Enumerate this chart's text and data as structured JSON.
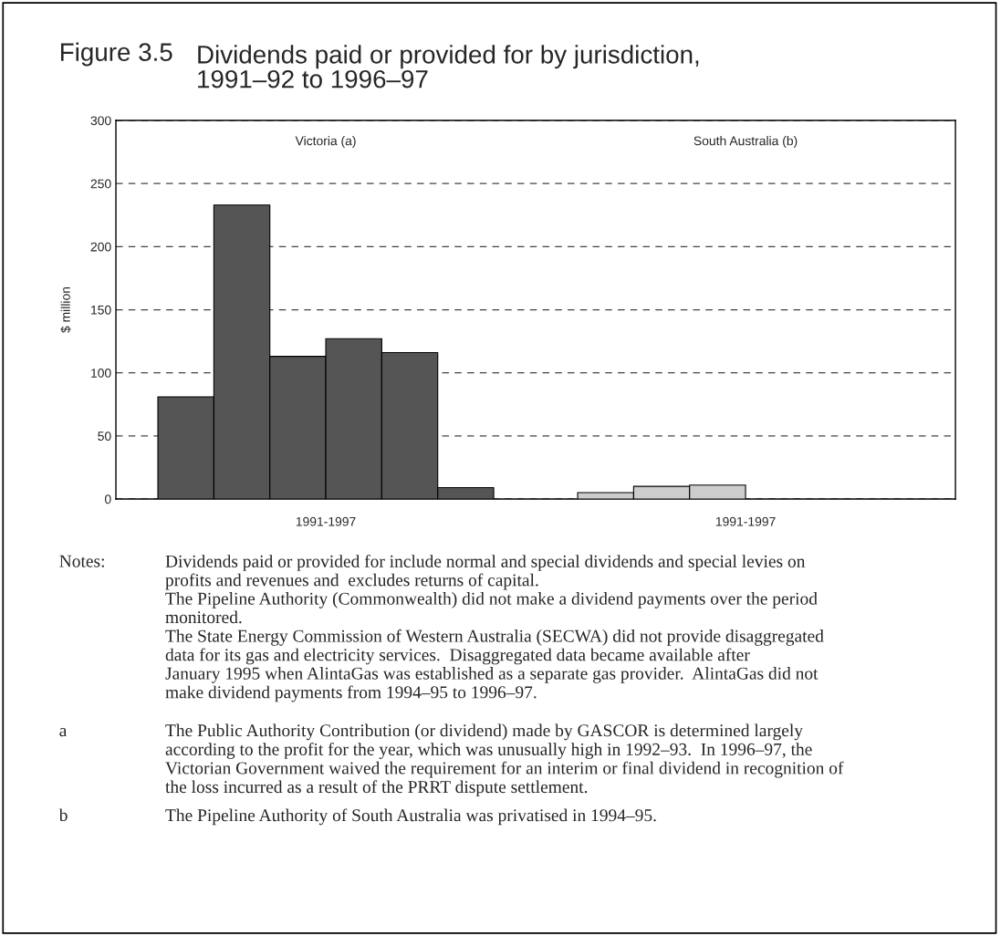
{
  "chart_data": {
    "type": "bar",
    "title": "Figure 3.5",
    "subtitle": "Dividends paid or provided for by jurisdiction,\n1991–92 to 1996–97",
    "ylabel": "$ million",
    "categories": [
      "1991-1997",
      "1991-1997"
    ],
    "series": [
      {
        "colors": [
          "#555555",
          "#cccccc"
        ],
        "values": [
          81,
          5
        ]
      },
      {
        "colors": [
          "#555555",
          "#cccccc"
        ],
        "values": [
          233,
          10
        ]
      },
      {
        "colors": [
          "#555555",
          "#cccccc"
        ],
        "values": [
          113,
          11
        ]
      },
      {
        "colors": [
          "#555555",
          "#cccccc"
        ],
        "values": [
          127,
          null
        ]
      },
      {
        "colors": [
          "#555555",
          "#cccccc"
        ],
        "values": [
          116,
          null
        ]
      },
      {
        "colors": [
          "#555555",
          "#cccccc"
        ],
        "values": [
          9,
          null
        ]
      }
    ],
    "ylim": [
      0,
      300
    ],
    "yticks": [
      0,
      50,
      100,
      150,
      200,
      250,
      300
    ],
    "grid": "y",
    "annotations": [
      "Victoria (a)",
      "South Australia (b)",
      "Notes:",
      "Dividends paid or provided for include normal and special dividends and special levies on\nprofits and revenues and  excludes returns of capital.\nThe Pipeline Authority (Commonwealth) did not make a dividend payments over the period\nmonitored.\nThe State Energy Commission of Western Australia (SECWA) did not provide disaggregated\ndata for its gas and electricity services.  Disaggregated data became available after\nJanuary 1995 when AlintaGas was established as a separate gas provider.  AlintaGas did not\nmake dividend payments from 1994–95 to 1996–97.",
      "a",
      "The Public Authority Contribution (or dividend) made by GASCOR is determined largely\naccording to the profit for the year, which was unusually high in 1992–93.  In 1996–97, the\nVictorian Government waived the requirement for an interim or final dividend in recognition of\nthe loss incurred as a result of the PRRT dispute settlement.",
      "b",
      "The Pipeline Authority of South Australia was privatised in 1994–95."
    ]
  }
}
